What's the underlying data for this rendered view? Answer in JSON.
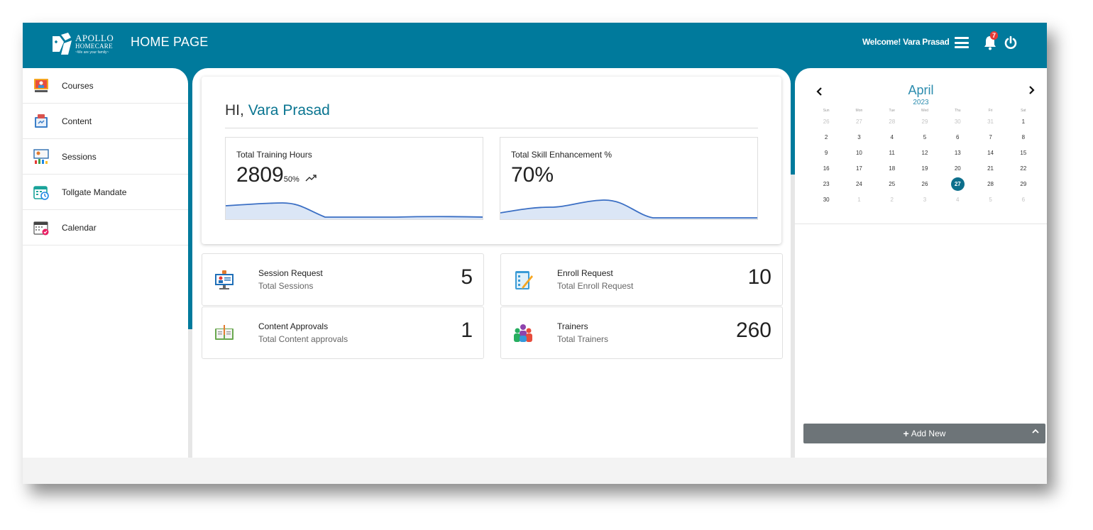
{
  "header": {
    "logo": {
      "brand": "APOLLO",
      "brand_line2": "HOMECARE",
      "tagline": "~We are your family~"
    },
    "page_title": "HOME PAGE",
    "welcome": "Welcome! Vara Prasad",
    "notification_count": "7",
    "icons": {
      "menu": "hamburger-menu-icon",
      "bell": "bell-icon",
      "power": "power-icon"
    }
  },
  "sidebar": {
    "items": [
      {
        "label": "Courses",
        "icon": "courses-icon"
      },
      {
        "label": "Content",
        "icon": "content-icon"
      },
      {
        "label": "Sessions",
        "icon": "sessions-icon"
      },
      {
        "label": "Tollgate Mandate",
        "icon": "tollgate-mandate-icon"
      },
      {
        "label": "Calendar",
        "icon": "calendar-icon"
      }
    ]
  },
  "greeting": {
    "prefix": "HI,",
    "name": "Vara Prasad"
  },
  "stats": [
    {
      "title": "Total Training Hours",
      "value": "2809",
      "delta": "50%",
      "trend_icon": "trending-up-icon"
    },
    {
      "title": "Total Skill Enhancement %",
      "value": "70%"
    }
  ],
  "tiles": [
    {
      "title": "Session Request",
      "subtitle": "Total Sessions",
      "value": "5",
      "icon": "session-request-icon"
    },
    {
      "title": "Enroll Request",
      "subtitle": "Total Enroll Request",
      "value": "10",
      "icon": "enroll-request-icon"
    },
    {
      "title": "Content Approvals",
      "subtitle": "Total Content approvals",
      "value": "1",
      "icon": "content-approvals-icon"
    },
    {
      "title": "Trainers",
      "subtitle": "Total Trainers",
      "value": "260",
      "icon": "trainers-icon"
    }
  ],
  "calendar": {
    "month": "April",
    "year": "2023",
    "weekdays": [
      "Sun",
      "Mon",
      "Tue",
      "Wed",
      "Thu",
      "Fri",
      "Sat"
    ],
    "selected": "27",
    "weeks": [
      [
        {
          "d": "26",
          "m": true
        },
        {
          "d": "27",
          "m": true
        },
        {
          "d": "28",
          "m": true
        },
        {
          "d": "29",
          "m": true
        },
        {
          "d": "30",
          "m": true
        },
        {
          "d": "31",
          "m": true
        },
        {
          "d": "1"
        }
      ],
      [
        {
          "d": "2"
        },
        {
          "d": "3"
        },
        {
          "d": "4"
        },
        {
          "d": "5"
        },
        {
          "d": "6"
        },
        {
          "d": "7"
        },
        {
          "d": "8"
        }
      ],
      [
        {
          "d": "9"
        },
        {
          "d": "10"
        },
        {
          "d": "11"
        },
        {
          "d": "12"
        },
        {
          "d": "13"
        },
        {
          "d": "14"
        },
        {
          "d": "15"
        }
      ],
      [
        {
          "d": "16"
        },
        {
          "d": "17"
        },
        {
          "d": "18"
        },
        {
          "d": "19"
        },
        {
          "d": "20"
        },
        {
          "d": "21"
        },
        {
          "d": "22"
        }
      ],
      [
        {
          "d": "23"
        },
        {
          "d": "24"
        },
        {
          "d": "25"
        },
        {
          "d": "26"
        },
        {
          "d": "27"
        },
        {
          "d": "28"
        },
        {
          "d": "29"
        }
      ],
      [
        {
          "d": "30"
        },
        {
          "d": "1",
          "m": true
        },
        {
          "d": "2",
          "m": true
        },
        {
          "d": "3",
          "m": true
        },
        {
          "d": "4",
          "m": true
        },
        {
          "d": "5",
          "m": true
        },
        {
          "d": "6",
          "m": true
        }
      ]
    ],
    "add_new_label": "Add New"
  },
  "colors": {
    "brand": "#007a9c",
    "accent": "#0a7591",
    "spark_line": "#3b6fc4",
    "spark_fill": "#dbe6f6",
    "badge": "#e53935"
  }
}
